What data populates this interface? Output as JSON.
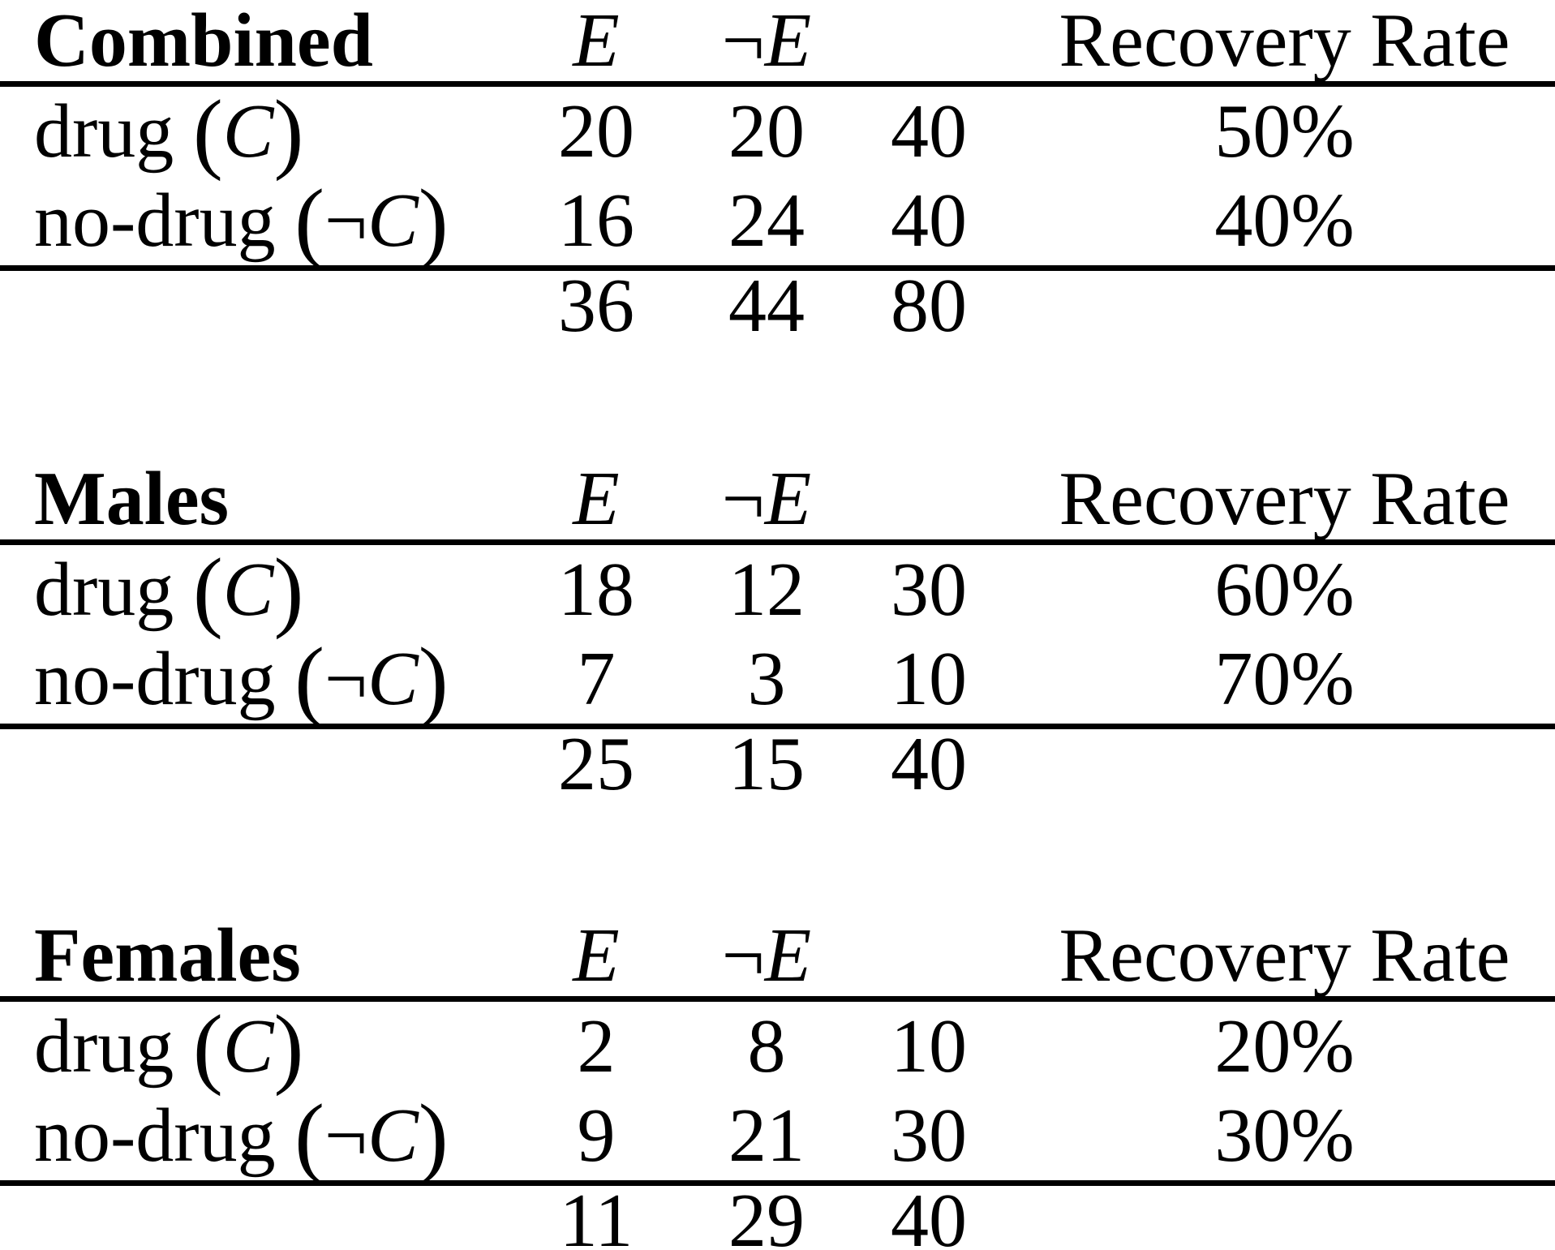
{
  "page": {
    "background": "#ffffff",
    "text_color": "#000000",
    "rule_color": "#000000"
  },
  "tables": [
    {
      "title": "Combined",
      "headers": {
        "e": "E",
        "ne_pre": "¬",
        "ne_sym": "E",
        "total": "",
        "recovery": "Recovery Rate"
      },
      "rows": [
        {
          "word": "drug ",
          "open": "(",
          "neg": "",
          "sym": "C",
          "close": ")",
          "e": "20",
          "ne": "20",
          "total": "40",
          "rate": "50%"
        },
        {
          "word": "no-drug ",
          "open": "(",
          "neg": "¬",
          "sym": "C",
          "close": ")",
          "e": "16",
          "ne": "24",
          "total": "40",
          "rate": "40%"
        }
      ],
      "totals": {
        "e": "36",
        "ne": "44",
        "total": "80"
      }
    },
    {
      "title": "Males",
      "headers": {
        "e": "E",
        "ne_pre": "¬",
        "ne_sym": "E",
        "total": "",
        "recovery": "Recovery Rate"
      },
      "rows": [
        {
          "word": "drug ",
          "open": "(",
          "neg": "",
          "sym": "C",
          "close": ")",
          "e": "18",
          "ne": "12",
          "total": "30",
          "rate": "60%"
        },
        {
          "word": "no-drug ",
          "open": "(",
          "neg": "¬",
          "sym": "C",
          "close": ")",
          "e": "7",
          "ne": "3",
          "total": "10",
          "rate": "70%"
        }
      ],
      "totals": {
        "e": "25",
        "ne": "15",
        "total": "40"
      }
    },
    {
      "title": "Females",
      "headers": {
        "e": "E",
        "ne_pre": "¬",
        "ne_sym": "E",
        "total": "",
        "recovery": "Recovery Rate"
      },
      "rows": [
        {
          "word": "drug ",
          "open": "(",
          "neg": "",
          "sym": "C",
          "close": ")",
          "e": "2",
          "ne": "8",
          "total": "10",
          "rate": "20%"
        },
        {
          "word": "no-drug ",
          "open": "(",
          "neg": "¬",
          "sym": "C",
          "close": ")",
          "e": "9",
          "ne": "21",
          "total": "30",
          "rate": "30%"
        }
      ],
      "totals": {
        "e": "11",
        "ne": "29",
        "total": "40"
      }
    }
  ],
  "chart_data": [
    {
      "type": "table",
      "title": "Combined",
      "columns": [
        "",
        "E",
        "¬E",
        "",
        "Recovery Rate"
      ],
      "rows": [
        [
          "drug (C)",
          20,
          20,
          40,
          "50%"
        ],
        [
          "no-drug (¬C)",
          16,
          24,
          40,
          "40%"
        ],
        [
          "",
          36,
          44,
          80,
          ""
        ]
      ]
    },
    {
      "type": "table",
      "title": "Males",
      "columns": [
        "",
        "E",
        "¬E",
        "",
        "Recovery Rate"
      ],
      "rows": [
        [
          "drug (C)",
          18,
          12,
          30,
          "60%"
        ],
        [
          "no-drug (¬C)",
          7,
          3,
          10,
          "70%"
        ],
        [
          "",
          25,
          15,
          40,
          ""
        ]
      ]
    },
    {
      "type": "table",
      "title": "Females",
      "columns": [
        "",
        "E",
        "¬E",
        "",
        "Recovery Rate"
      ],
      "rows": [
        [
          "drug (C)",
          2,
          8,
          10,
          "20%"
        ],
        [
          "no-drug (¬C)",
          9,
          21,
          30,
          "30%"
        ],
        [
          "",
          11,
          29,
          40,
          ""
        ]
      ]
    }
  ]
}
